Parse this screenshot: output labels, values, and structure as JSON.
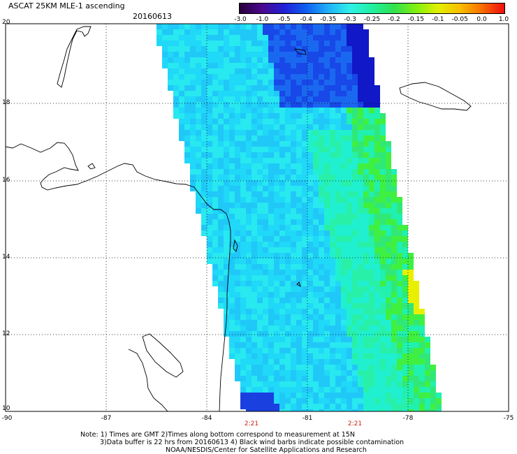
{
  "header": {
    "title": "ASCAT 25KM MLE-1 ascending",
    "date": "20160613"
  },
  "colorbar": {
    "labels": [
      "-3.0",
      "-1.0",
      "-0.5",
      "-0.4",
      "-0.35",
      "-0.3",
      "-0.25",
      "-0.2",
      "-0.15",
      "-0.1",
      "-0.05",
      "0.0",
      "1.0"
    ],
    "colors": [
      "#2a0040",
      "#4b0a8f",
      "#2020d8",
      "#1060f0",
      "#20b0f8",
      "#30f0e8",
      "#20f0a0",
      "#30e050",
      "#80f010",
      "#e0f000",
      "#f8c000",
      "#f87000",
      "#f01010"
    ]
  },
  "map": {
    "lat_labels": [
      "20",
      "18",
      "16",
      "14",
      "12",
      "10"
    ],
    "lon_labels": [
      "-90",
      "-87",
      "-84",
      "-81",
      "-78",
      "-75"
    ],
    "time_labels": [
      "2:21",
      "2:21"
    ]
  },
  "notes": {
    "line1": "Note: 1) Times are GMT 2)Times along bottom correspond to measurement at 15N",
    "line2": "3)Data buffer is 22 hrs from 20160613 4) Black wind barbs indicate possible contamination",
    "line3": "NOAA/NESDIS/Center for Satellite Applications and Research"
  }
}
